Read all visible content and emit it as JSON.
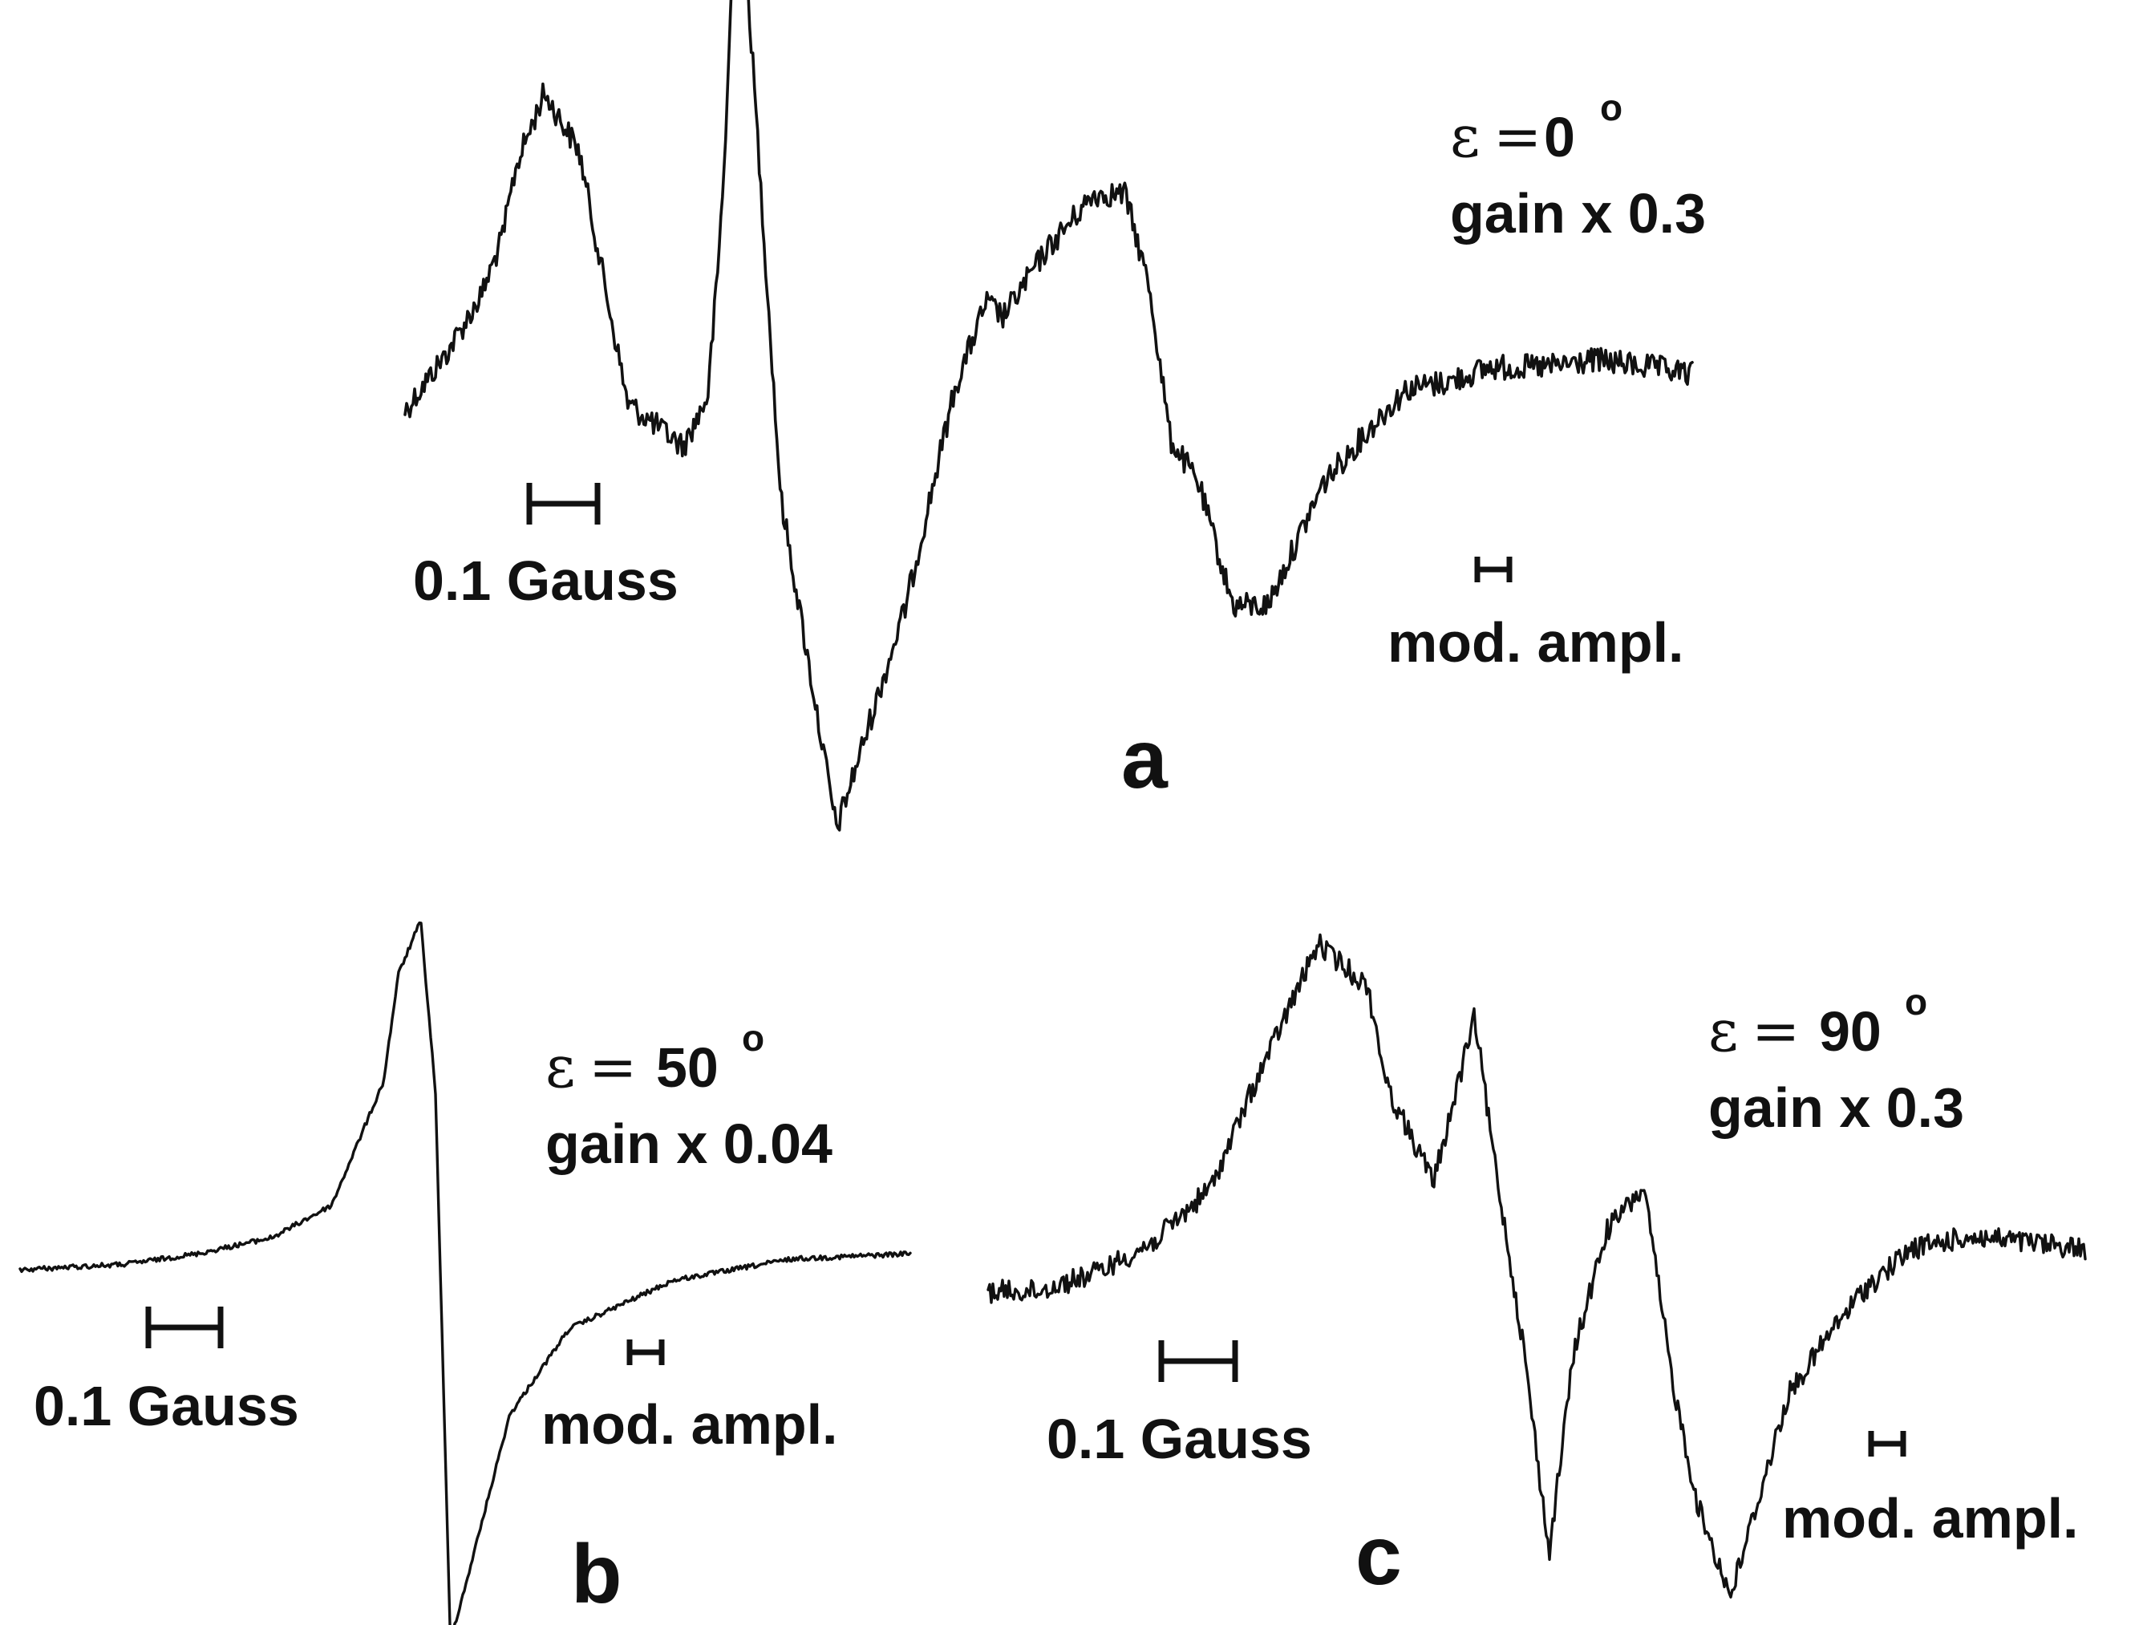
{
  "chart_data": [
    {
      "type": "line",
      "panel": "a",
      "annotation": {
        "symbol": "ε",
        "equals": "=",
        "angle": "0",
        "degree": "o",
        "gain": "gain x 0.3"
      },
      "scale_bar_label": "0.1 Gauss",
      "mod_ampl_label": "mod. ampl.",
      "series": [
        {
          "x": [
            0,
            0.6,
            1.1,
            1.4,
            1.6,
            2.0,
            2.5,
            3.2,
            4.0,
            4.35,
            4.5,
            4.62,
            4.72,
            4.85,
            5.1,
            5.4,
            6.2,
            7.2,
            7.9,
            8.35,
            8.6,
            9.2,
            9.9,
            10.35,
            10.7,
            11.0,
            11.4,
            11.9,
            12.4,
            13.2,
            14.0,
            14.4,
            15.0,
            15.6,
            16.4,
            17.1,
            17.9,
            18.5
          ],
          "y": [
            -0.08,
            0.0,
            0.08,
            0.16,
            0.26,
            0.36,
            0.28,
            -0.07,
            -0.13,
            -0.06,
            0.12,
            0.32,
            0.58,
            0.62,
            0.25,
            -0.2,
            -0.66,
            -0.35,
            -0.05,
            0.07,
            0.05,
            0.14,
            0.22,
            0.22,
            0.09,
            -0.12,
            -0.18,
            -0.35,
            -0.35,
            -0.18,
            -0.09,
            -0.05,
            -0.04,
            -0.02,
            -0.02,
            -0.01,
            -0.02,
            -0.03
          ]
        }
      ]
    },
    {
      "type": "line",
      "panel": "b",
      "annotation": {
        "symbol": "ε",
        "equals": "=",
        "angle": "50",
        "degree": "o",
        "gain": "gain x 0.04"
      },
      "scale_bar_label": "0.1 Gauss",
      "mod_ampl_label": "mod. ampl.",
      "series": [
        {
          "x": [
            0,
            0.7,
            1.2,
            1.7,
            2.1,
            2.45,
            2.55,
            2.7,
            2.8,
            2.9,
            3.0,
            3.3,
            3.7,
            4.4,
            5.2,
            6.0
          ],
          "y": [
            -0.03,
            -0.02,
            0.0,
            0.03,
            0.09,
            0.32,
            0.52,
            0.62,
            0.3,
            -0.72,
            -0.62,
            -0.3,
            -0.14,
            -0.05,
            -0.01,
            0.0
          ]
        }
      ]
    },
    {
      "type": "line",
      "panel": "c",
      "annotation": {
        "symbol": "ε",
        "equals": "=",
        "angle": "90",
        "degree": "o",
        "gain": "gain x 0.3"
      },
      "scale_bar_label": "0.1 Gauss",
      "mod_ampl_label": "mod. ampl.",
      "series": [
        {
          "x": [
            0,
            0.6,
            1.3,
            2.0,
            2.7,
            3.2,
            4.0,
            4.6,
            4.85,
            5.4,
            5.9,
            6.1,
            6.5,
            6.8,
            7.1,
            7.5,
            7.95,
            8.3,
            8.6,
            9.0,
            9.7,
            10.2,
            10.6,
            11.2,
            11.9,
            12.6,
            13.3
          ],
          "y": [
            -0.05,
            -0.05,
            -0.02,
            0.03,
            0.12,
            0.28,
            0.52,
            0.45,
            0.28,
            0.13,
            0.4,
            0.2,
            -0.15,
            -0.48,
            -0.15,
            0.05,
            0.12,
            -0.2,
            -0.4,
            -0.55,
            -0.22,
            -0.12,
            -0.05,
            0.02,
            0.04,
            0.03,
            0.02
          ]
        }
      ]
    }
  ]
}
